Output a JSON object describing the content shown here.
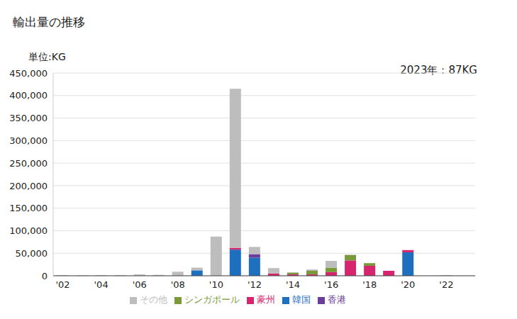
{
  "chart_data": {
    "type": "bar",
    "title": "輸出量の推移",
    "subtitle": "単位:KG",
    "annotation": "2023年：87KG",
    "stacked": true,
    "grid": true,
    "legend": "bottom",
    "categories": [
      "'02",
      null,
      "'04",
      null,
      "'06",
      null,
      "'08",
      null,
      "'10",
      null,
      "'12",
      null,
      "'14",
      null,
      "'16",
      null,
      "'18",
      null,
      "'20",
      null,
      "'22",
      null
    ],
    "ylim": [
      0,
      450000
    ],
    "yticks": [
      0,
      {
        "value": 50000,
        "label": "50,000"
      },
      {
        "value": 100000,
        "label": "100,000"
      },
      {
        "value": 150000,
        "label": "150,000"
      },
      {
        "value": 200000,
        "label": "200,000"
      },
      {
        "value": 250000,
        "label": "250,000"
      },
      {
        "value": 300000,
        "label": "300,000"
      },
      {
        "value": 350000,
        "label": "350,000"
      },
      {
        "value": 400000,
        "label": "400,000"
      },
      {
        "value": 450000,
        "label": "450,000"
      }
    ],
    "series": [
      {
        "name": "韓国",
        "color": "#1f6fbf",
        "values": [
          0,
          0,
          0,
          0,
          0,
          0,
          0,
          12000,
          0,
          58000,
          40000,
          0,
          0,
          0,
          0,
          0,
          0,
          0,
          52000,
          0,
          0,
          0
        ]
      },
      {
        "name": "豪州",
        "color": "#d6246e",
        "values": [
          0,
          0,
          0,
          0,
          0,
          0,
          0,
          0,
          0,
          4000,
          0,
          5000,
          3000,
          3000,
          8000,
          34000,
          22000,
          11000,
          5000,
          0,
          0,
          0
        ]
      },
      {
        "name": "シンガポール",
        "color": "#7a9a3a",
        "values": [
          0,
          0,
          0,
          0,
          0,
          0,
          0,
          0,
          0,
          0,
          0,
          0,
          4000,
          8000,
          10000,
          12000,
          6000,
          0,
          0,
          0,
          0,
          0
        ]
      },
      {
        "name": "香港",
        "color": "#6a3d9a",
        "values": [
          0,
          0,
          0,
          0,
          0,
          0,
          0,
          0,
          0,
          0,
          8000,
          0,
          0,
          0,
          0,
          0,
          0,
          0,
          0,
          0,
          0,
          87
        ]
      },
      {
        "name": "その他",
        "color": "#bdbdbd",
        "values": [
          1500,
          1000,
          1500,
          1500,
          3000,
          2000,
          9000,
          6000,
          87000,
          353000,
          16000,
          12000,
          1000,
          3000,
          15000,
          1000,
          0,
          0,
          0,
          0,
          1500,
          0
        ]
      }
    ]
  }
}
